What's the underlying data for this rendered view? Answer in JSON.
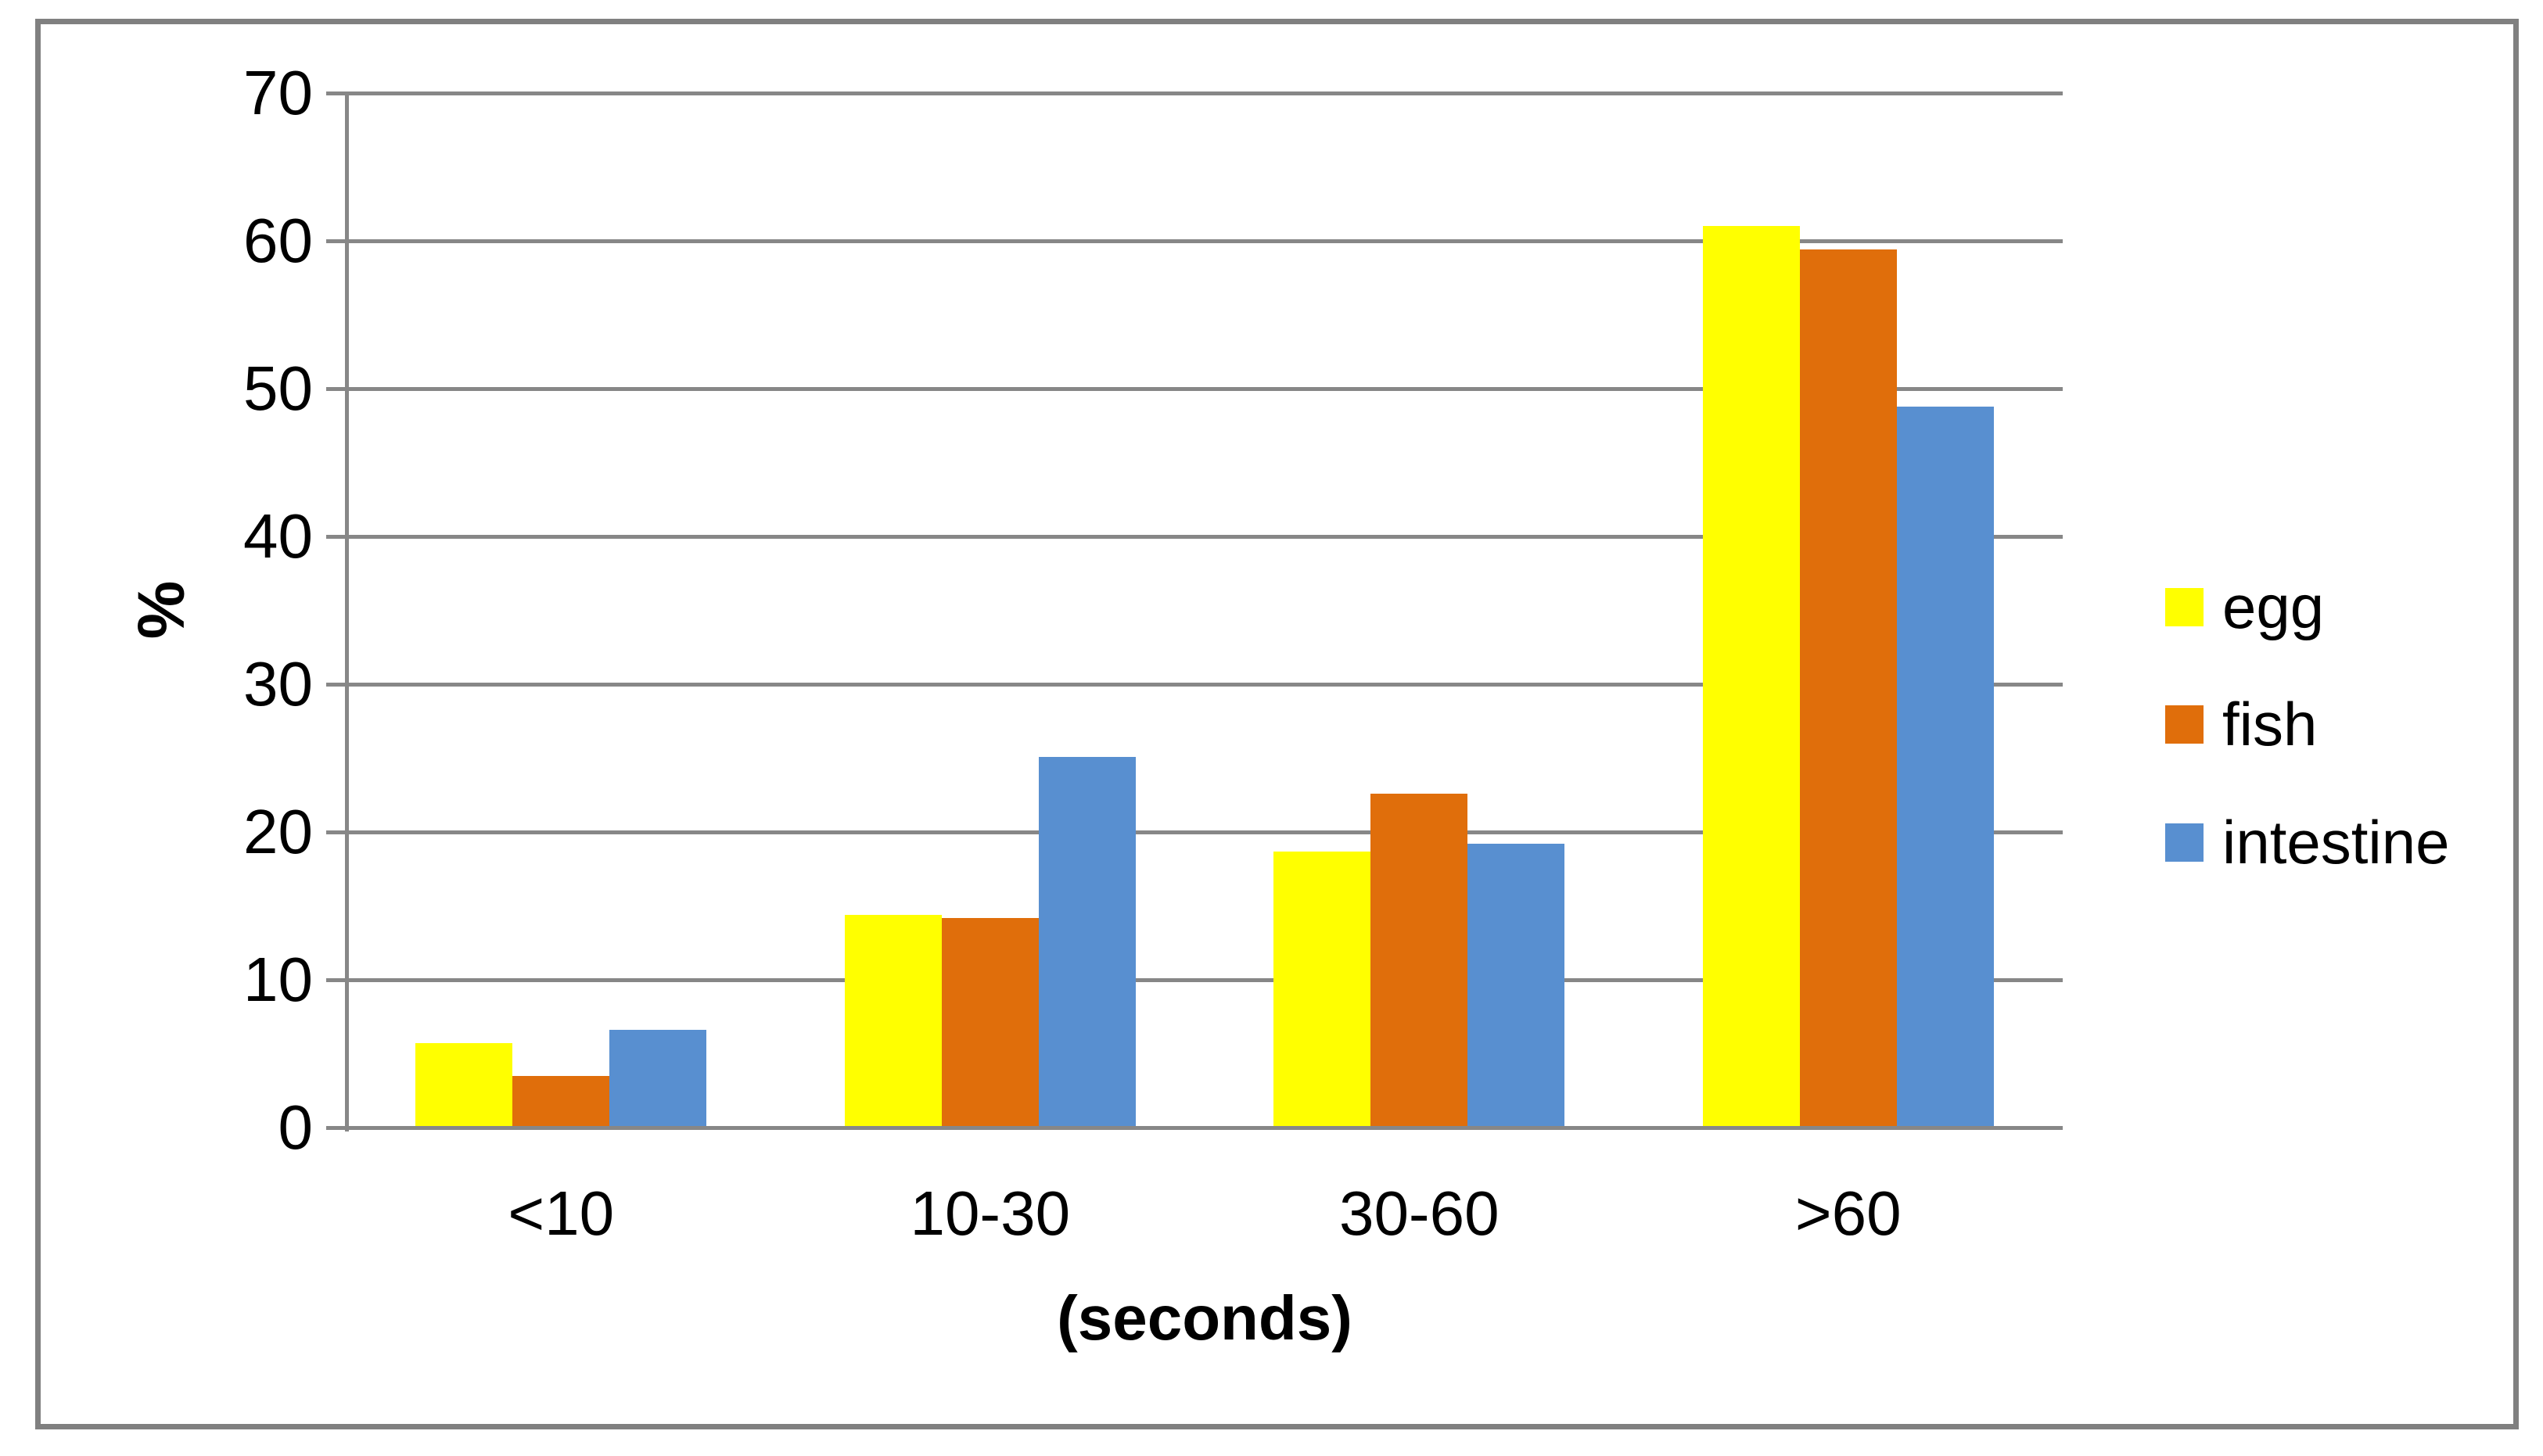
{
  "figure": {
    "background_color": "#FFFFFF",
    "frame_border_color": "#808080",
    "gridline_color": "#878787",
    "axis_line_color": "#878787",
    "text_color": "#000000"
  },
  "chart_data": {
    "type": "bar",
    "title": "",
    "categories": [
      "<10",
      "10-30",
      "30-60",
      ">60"
    ],
    "series": [
      {
        "name": "egg",
        "color": "#FFFF00",
        "values": [
          5.7,
          14.4,
          18.7,
          61.0
        ]
      },
      {
        "name": "fish",
        "color": "#E06E0B",
        "values": [
          3.5,
          14.2,
          22.6,
          59.4
        ]
      },
      {
        "name": "intestine",
        "color": "#588FD0",
        "values": [
          6.6,
          25.1,
          19.2,
          48.8
        ]
      }
    ],
    "xlabel": "(seconds)",
    "ylabel": "%",
    "ylim": [
      0,
      70
    ],
    "yticks": [
      0,
      10,
      20,
      30,
      40,
      50,
      60,
      70
    ],
    "grid": true,
    "legend_position": "right"
  }
}
